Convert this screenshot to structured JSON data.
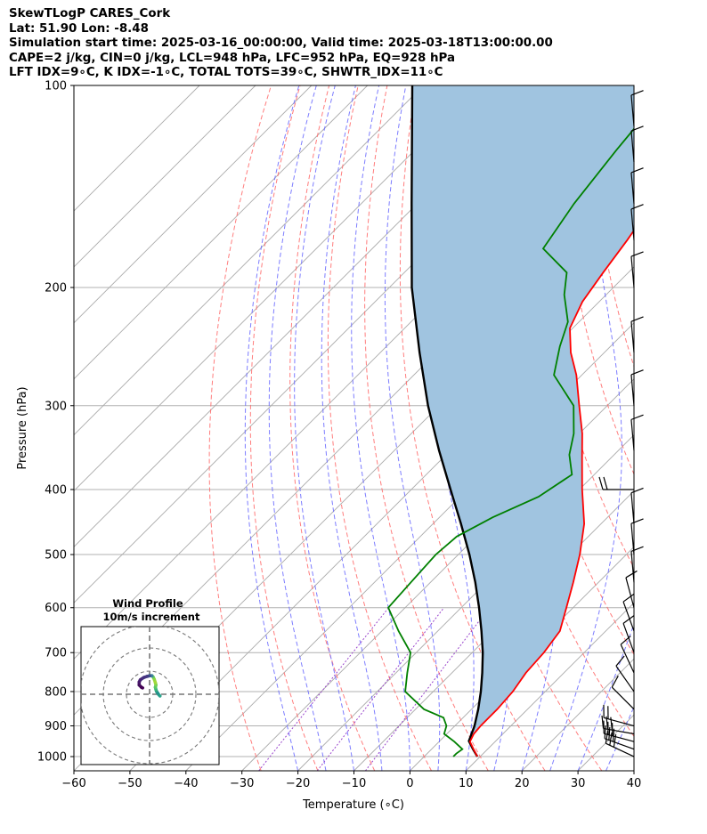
{
  "header": {
    "line1": "SkewTLogP CARES_Cork",
    "line2": "Lat: 51.90   Lon: -8.48",
    "line3": "Simulation start time: 2025-03-16_00:00:00, Valid time: 2025-03-18T13:00:00.00",
    "line4": "CAPE=2 j/kg, CIN=0 j/kg, LCL=948 hPa, LFC=952 hPa, EQ=928 hPa",
    "line5": "LFT IDX=9∘C, K IDX=-1∘C, TOTAL TOTS=39∘C, SHWTR_IDX=11∘C"
  },
  "chart_data": {
    "type": "skewt-logp",
    "xlabel": "Temperature (∘C)",
    "ylabel": "Pressure (hPa)",
    "xlim": [
      -60,
      40
    ],
    "ylim": [
      1050,
      100
    ],
    "xticks": [
      "−60",
      "−50",
      "−40",
      "−30",
      "−20",
      "−10",
      "0",
      "10",
      "20",
      "30",
      "40"
    ],
    "yticks": [
      "100",
      "200",
      "300",
      "400",
      "500",
      "600",
      "700",
      "800",
      "900",
      "1000"
    ],
    "temperature_profile": {
      "color": "#ff0000",
      "points": [
        [
          1000,
          9.5
        ],
        [
          975,
          7.5
        ],
        [
          950,
          5.5
        ],
        [
          925,
          4.8
        ],
        [
          900,
          4.6
        ],
        [
          850,
          4.6
        ],
        [
          800,
          4.2
        ],
        [
          750,
          3.2
        ],
        [
          700,
          2.8
        ],
        [
          650,
          1.8
        ],
        [
          600,
          -1.2
        ],
        [
          550,
          -4.5
        ],
        [
          500,
          -8.3
        ],
        [
          450,
          -13
        ],
        [
          400,
          -19.5
        ],
        [
          360,
          -25
        ],
        [
          330,
          -29.5
        ],
        [
          300,
          -35
        ],
        [
          270,
          -41
        ],
        [
          250,
          -46
        ],
        [
          230,
          -50.5
        ],
        [
          210,
          -53
        ],
        [
          190,
          -54.5
        ],
        [
          170,
          -56
        ],
        [
          150,
          -58
        ],
        [
          130,
          -61
        ],
        [
          115,
          -63.5
        ],
        [
          100,
          -65.5
        ]
      ]
    },
    "dewpoint_profile": {
      "color": "#008000",
      "points": [
        [
          1000,
          5.2
        ],
        [
          990,
          5.2
        ],
        [
          975,
          5.5
        ],
        [
          950,
          2.7
        ],
        [
          925,
          -0.5
        ],
        [
          900,
          -1.5
        ],
        [
          875,
          -3.5
        ],
        [
          850,
          -8.5
        ],
        [
          800,
          -15
        ],
        [
          750,
          -18
        ],
        [
          700,
          -21
        ],
        [
          650,
          -27
        ],
        [
          600,
          -33
        ],
        [
          550,
          -33.5
        ],
        [
          500,
          -34
        ],
        [
          470,
          -33.5
        ],
        [
          440,
          -30.5
        ],
        [
          410,
          -26
        ],
        [
          380,
          -24
        ],
        [
          355,
          -28
        ],
        [
          330,
          -31
        ],
        [
          300,
          -36
        ],
        [
          270,
          -45
        ],
        [
          245,
          -49
        ],
        [
          225,
          -52
        ],
        [
          205,
          -57.5
        ],
        [
          190,
          -61
        ],
        [
          175,
          -69.5
        ],
        [
          150,
          -72
        ],
        [
          125,
          -74
        ],
        [
          100,
          -76
        ]
      ]
    },
    "parcel_profile": {
      "color": "#000000",
      "points": [
        [
          1000,
          9.5
        ],
        [
          975,
          7.4
        ],
        [
          948,
          5.2
        ],
        [
          900,
          3.5
        ],
        [
          850,
          1.2
        ],
        [
          800,
          -1.5
        ],
        [
          750,
          -4.6
        ],
        [
          700,
          -8.1
        ],
        [
          650,
          -12.2
        ],
        [
          600,
          -16.8
        ],
        [
          550,
          -22
        ],
        [
          500,
          -28
        ],
        [
          450,
          -35
        ],
        [
          400,
          -43
        ],
        [
          350,
          -52
        ],
        [
          300,
          -62
        ],
        [
          250,
          -73
        ],
        [
          200,
          -86
        ],
        [
          150,
          -101
        ],
        [
          100,
          -122
        ]
      ]
    },
    "shading_color": "#a0c4e0",
    "reference_lines": {
      "isotherms_color": "#aaaaaa",
      "dry_adiabats_color": "#ff6666",
      "moist_adiabats_color": "#6666ff",
      "mixing_ratio_color": "#9944cc"
    },
    "wind_barbs": [
      {
        "p": 1000,
        "speed": 30,
        "dir": 295
      },
      {
        "p": 975,
        "speed": 30,
        "dir": 290
      },
      {
        "p": 950,
        "speed": 28,
        "dir": 285
      },
      {
        "p": 925,
        "speed": 25,
        "dir": 280
      },
      {
        "p": 900,
        "speed": 15,
        "dir": 285
      },
      {
        "p": 850,
        "speed": 12,
        "dir": 315
      },
      {
        "p": 800,
        "speed": 10,
        "dir": 325
      },
      {
        "p": 750,
        "speed": 10,
        "dir": 335
      },
      {
        "p": 700,
        "speed": 10,
        "dir": 340
      },
      {
        "p": 650,
        "speed": 10,
        "dir": 340
      },
      {
        "p": 600,
        "speed": 10,
        "dir": 345
      },
      {
        "p": 550,
        "speed": 10,
        "dir": 355
      },
      {
        "p": 500,
        "speed": 10,
        "dir": 355
      },
      {
        "p": 450,
        "speed": 10,
        "dir": 355
      },
      {
        "p": 400,
        "speed": 20,
        "dir": 270
      },
      {
        "p": 350,
        "speed": 10,
        "dir": 355
      },
      {
        "p": 300,
        "speed": 10,
        "dir": 355
      },
      {
        "p": 250,
        "speed": 10,
        "dir": 355
      },
      {
        "p": 200,
        "speed": 10,
        "dir": 355
      },
      {
        "p": 170,
        "speed": 10,
        "dir": 355
      },
      {
        "p": 150,
        "speed": 10,
        "dir": 355
      },
      {
        "p": 130,
        "speed": 10,
        "dir": 355
      },
      {
        "p": 115,
        "speed": 10,
        "dir": 355
      }
    ],
    "hodograph": {
      "title_line1": "Wind Profile",
      "title_line2": "10m/s increment",
      "rings_ms": [
        10,
        20,
        30
      ],
      "points": [
        [
          9,
          -1.5
        ],
        [
          8,
          -0.5
        ],
        [
          7,
          1
        ],
        [
          6,
          2.5
        ],
        [
          5.5,
          4
        ],
        [
          5,
          6
        ],
        [
          5.5,
          8
        ],
        [
          5,
          10
        ],
        [
          4,
          13
        ],
        [
          3,
          15
        ],
        [
          2,
          16
        ],
        [
          0,
          16
        ],
        [
          -2,
          15.5
        ],
        [
          -5,
          14.5
        ],
        [
          -8,
          12.5
        ],
        [
          -9,
          10.5
        ],
        [
          -9,
          8
        ],
        [
          -7,
          6
        ],
        [
          -6,
          5.5
        ]
      ]
    }
  }
}
